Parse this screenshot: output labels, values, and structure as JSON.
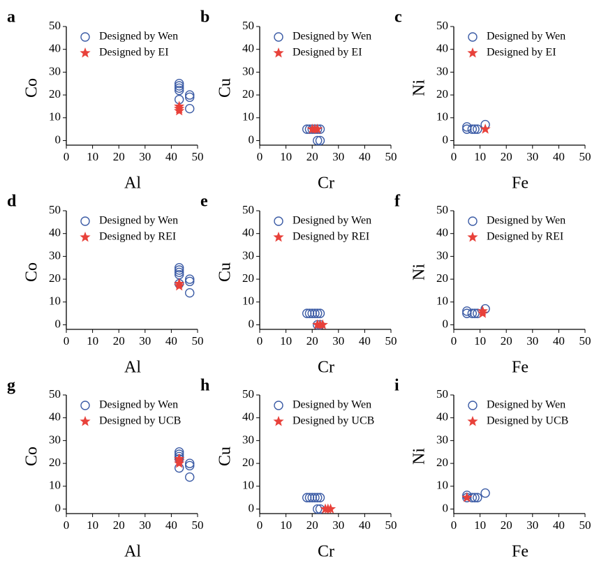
{
  "chart_data": [
    {
      "type": "scatter",
      "panel": "a",
      "x_label": "Al",
      "y_label": "Co",
      "xlim": [
        0,
        50
      ],
      "ylim": [
        -2,
        50
      ],
      "xticks": [
        0,
        10,
        20,
        30,
        40,
        50
      ],
      "yticks": [
        0,
        10,
        20,
        30,
        40,
        50
      ],
      "series": [
        {
          "name": "Designed by Wen",
          "color": "#3b5ba5",
          "marker": "circle",
          "x": [
            43,
            43,
            43,
            43,
            43,
            47,
            47,
            47
          ],
          "values": [
            25,
            24,
            23,
            22,
            18,
            20,
            19,
            14
          ]
        },
        {
          "name": "Designed by EI",
          "color": "#e8413a",
          "marker": "star",
          "x": [
            43,
            43,
            43
          ],
          "values": [
            15,
            14,
            13
          ]
        }
      ]
    },
    {
      "type": "scatter",
      "panel": "b",
      "x_label": "Cr",
      "y_label": "Cu",
      "xlim": [
        0,
        50
      ],
      "ylim": [
        -2,
        50
      ],
      "xticks": [
        0,
        10,
        20,
        30,
        40,
        50
      ],
      "yticks": [
        0,
        10,
        20,
        30,
        40,
        50
      ],
      "series": [
        {
          "name": "Designed by Wen",
          "color": "#3b5ba5",
          "marker": "circle",
          "x": [
            18,
            19,
            20,
            21,
            22,
            23,
            22,
            23
          ],
          "values": [
            5,
            5,
            5,
            5,
            5,
            5,
            0,
            0
          ]
        },
        {
          "name": "Designed by EI",
          "color": "#e8413a",
          "marker": "star",
          "x": [
            20,
            21,
            22
          ],
          "values": [
            5,
            5,
            5
          ]
        }
      ]
    },
    {
      "type": "scatter",
      "panel": "c",
      "x_label": "Fe",
      "y_label": "Ni",
      "xlim": [
        0,
        50
      ],
      "ylim": [
        -2,
        50
      ],
      "xticks": [
        0,
        10,
        20,
        30,
        40,
        50
      ],
      "yticks": [
        0,
        10,
        20,
        30,
        40,
        50
      ],
      "series": [
        {
          "name": "Designed by Wen",
          "color": "#3b5ba5",
          "marker": "circle",
          "x": [
            5,
            5,
            7,
            8,
            9,
            12
          ],
          "values": [
            6,
            5,
            5,
            5,
            5,
            7
          ]
        },
        {
          "name": "Designed by EI",
          "color": "#e8413a",
          "marker": "star",
          "x": [
            12
          ],
          "values": [
            5
          ]
        }
      ]
    },
    {
      "type": "scatter",
      "panel": "d",
      "x_label": "Al",
      "y_label": "Co",
      "xlim": [
        0,
        50
      ],
      "ylim": [
        -2,
        50
      ],
      "xticks": [
        0,
        10,
        20,
        30,
        40,
        50
      ],
      "yticks": [
        0,
        10,
        20,
        30,
        40,
        50
      ],
      "series": [
        {
          "name": "Designed by Wen",
          "color": "#3b5ba5",
          "marker": "circle",
          "x": [
            43,
            43,
            43,
            43,
            43,
            47,
            47,
            47
          ],
          "values": [
            25,
            24,
            23,
            22,
            18,
            20,
            19,
            14
          ]
        },
        {
          "name": "Designed by REI",
          "color": "#e8413a",
          "marker": "star",
          "x": [
            43,
            43
          ],
          "values": [
            18,
            17
          ]
        }
      ]
    },
    {
      "type": "scatter",
      "panel": "e",
      "x_label": "Cr",
      "y_label": "Cu",
      "xlim": [
        0,
        50
      ],
      "ylim": [
        -2,
        50
      ],
      "xticks": [
        0,
        10,
        20,
        30,
        40,
        50
      ],
      "yticks": [
        0,
        10,
        20,
        30,
        40,
        50
      ],
      "series": [
        {
          "name": "Designed by Wen",
          "color": "#3b5ba5",
          "marker": "circle",
          "x": [
            18,
            19,
            20,
            21,
            22,
            23,
            22,
            23
          ],
          "values": [
            5,
            5,
            5,
            5,
            5,
            5,
            0,
            0
          ]
        },
        {
          "name": "Designed by REI",
          "color": "#e8413a",
          "marker": "star",
          "x": [
            22,
            23,
            24
          ],
          "values": [
            0,
            0,
            0
          ]
        }
      ]
    },
    {
      "type": "scatter",
      "panel": "f",
      "x_label": "Fe",
      "y_label": "Ni",
      "xlim": [
        0,
        50
      ],
      "ylim": [
        -2,
        50
      ],
      "xticks": [
        0,
        10,
        20,
        30,
        40,
        50
      ],
      "yticks": [
        0,
        10,
        20,
        30,
        40,
        50
      ],
      "series": [
        {
          "name": "Designed by Wen",
          "color": "#3b5ba5",
          "marker": "circle",
          "x": [
            5,
            5,
            7,
            8,
            9,
            12
          ],
          "values": [
            6,
            5,
            5,
            5,
            5,
            7
          ]
        },
        {
          "name": "Designed by REI",
          "color": "#e8413a",
          "marker": "star",
          "x": [
            11,
            11
          ],
          "values": [
            5,
            6
          ]
        }
      ]
    },
    {
      "type": "scatter",
      "panel": "g",
      "x_label": "Al",
      "y_label": "Co",
      "xlim": [
        0,
        50
      ],
      "ylim": [
        -2,
        50
      ],
      "xticks": [
        0,
        10,
        20,
        30,
        40,
        50
      ],
      "yticks": [
        0,
        10,
        20,
        30,
        40,
        50
      ],
      "series": [
        {
          "name": "Designed by Wen",
          "color": "#3b5ba5",
          "marker": "circle",
          "x": [
            43,
            43,
            43,
            43,
            43,
            47,
            47,
            47
          ],
          "values": [
            25,
            24,
            23,
            22,
            18,
            20,
            19,
            14
          ]
        },
        {
          "name": "Designed by UCB",
          "color": "#e8413a",
          "marker": "star",
          "x": [
            43,
            43,
            43
          ],
          "values": [
            22,
            21,
            20
          ]
        }
      ]
    },
    {
      "type": "scatter",
      "panel": "h",
      "x_label": "Cr",
      "y_label": "Cu",
      "xlim": [
        0,
        50
      ],
      "ylim": [
        -2,
        50
      ],
      "xticks": [
        0,
        10,
        20,
        30,
        40,
        50
      ],
      "yticks": [
        0,
        10,
        20,
        30,
        40,
        50
      ],
      "series": [
        {
          "name": "Designed by Wen",
          "color": "#3b5ba5",
          "marker": "circle",
          "x": [
            18,
            19,
            20,
            21,
            22,
            23,
            22,
            23
          ],
          "values": [
            5,
            5,
            5,
            5,
            5,
            5,
            0,
            0
          ]
        },
        {
          "name": "Designed by UCB",
          "color": "#e8413a",
          "marker": "star",
          "x": [
            25,
            26,
            27
          ],
          "values": [
            0,
            0,
            0
          ]
        }
      ]
    },
    {
      "type": "scatter",
      "panel": "i",
      "x_label": "Fe",
      "y_label": "Ni",
      "xlim": [
        0,
        50
      ],
      "ylim": [
        -2,
        50
      ],
      "xticks": [
        0,
        10,
        20,
        30,
        40,
        50
      ],
      "yticks": [
        0,
        10,
        20,
        30,
        40,
        50
      ],
      "series": [
        {
          "name": "Designed by Wen",
          "color": "#3b5ba5",
          "marker": "circle",
          "x": [
            5,
            5,
            7,
            8,
            9,
            12
          ],
          "values": [
            6,
            5,
            5,
            5,
            5,
            7
          ]
        },
        {
          "name": "Designed by UCB",
          "color": "#e8413a",
          "marker": "star",
          "x": [
            5
          ],
          "values": [
            5
          ]
        }
      ]
    }
  ]
}
